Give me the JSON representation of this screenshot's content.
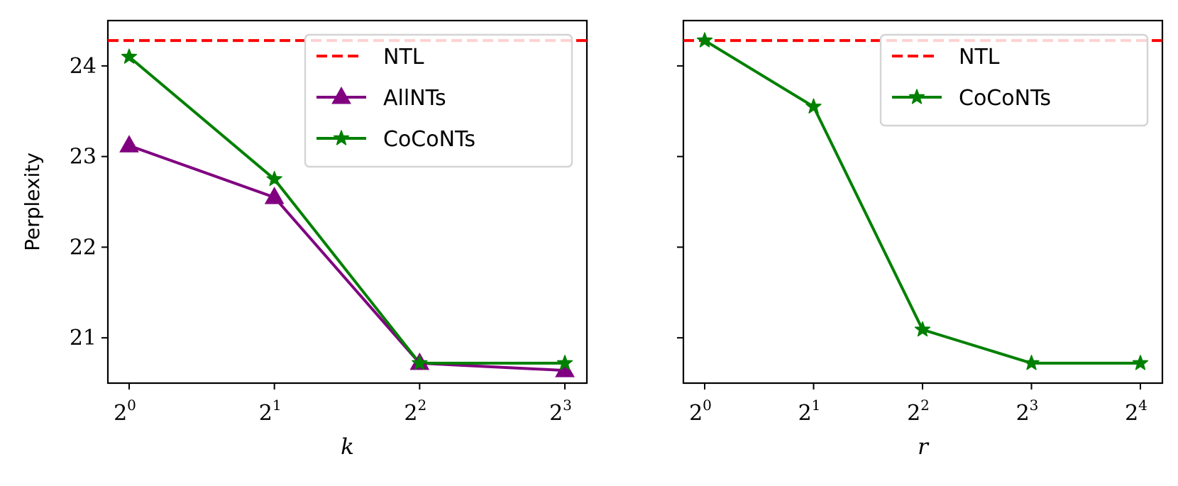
{
  "chart_data": [
    {
      "type": "line",
      "title": "",
      "xlabel": "k",
      "ylabel": "Perplexity",
      "x_scale": "log2",
      "x": [
        1,
        2,
        4,
        8
      ],
      "x_tick_labels": [
        {
          "base": "2",
          "exp": "0"
        },
        {
          "base": "2",
          "exp": "1"
        },
        {
          "base": "2",
          "exp": "2"
        },
        {
          "base": "2",
          "exp": "3"
        }
      ],
      "ylim": [
        20.5,
        24.5
      ],
      "y_ticks": [
        21,
        22,
        23,
        24
      ],
      "legend_position": "upper-right",
      "grid": false,
      "reference_lines": [
        {
          "name": "NTL",
          "y": 24.28,
          "color": "#ff0000",
          "style": "dashed"
        }
      ],
      "series": [
        {
          "name": "AllNTs",
          "marker": "triangle",
          "color": "#800080",
          "values": [
            23.12,
            22.55,
            20.72,
            20.64
          ]
        },
        {
          "name": "CoCoNTs",
          "marker": "star",
          "color": "#008000",
          "values": [
            24.1,
            22.75,
            20.72,
            20.72
          ]
        }
      ]
    },
    {
      "type": "line",
      "title": "",
      "xlabel": "r",
      "ylabel": "",
      "x_scale": "log2",
      "x": [
        1,
        2,
        4,
        8,
        16
      ],
      "x_tick_labels": [
        {
          "base": "2",
          "exp": "0"
        },
        {
          "base": "2",
          "exp": "1"
        },
        {
          "base": "2",
          "exp": "2"
        },
        {
          "base": "2",
          "exp": "3"
        },
        {
          "base": "2",
          "exp": "4"
        }
      ],
      "ylim": [
        20.5,
        24.5
      ],
      "y_ticks": [
        21,
        22,
        23,
        24
      ],
      "y_tick_labels_shown": false,
      "legend_position": "upper-right",
      "grid": false,
      "reference_lines": [
        {
          "name": "NTL",
          "y": 24.28,
          "color": "#ff0000",
          "style": "dashed"
        }
      ],
      "series": [
        {
          "name": "CoCoNTs",
          "marker": "star",
          "color": "#008000",
          "values": [
            24.28,
            23.55,
            21.09,
            20.72,
            20.72
          ]
        }
      ]
    }
  ]
}
